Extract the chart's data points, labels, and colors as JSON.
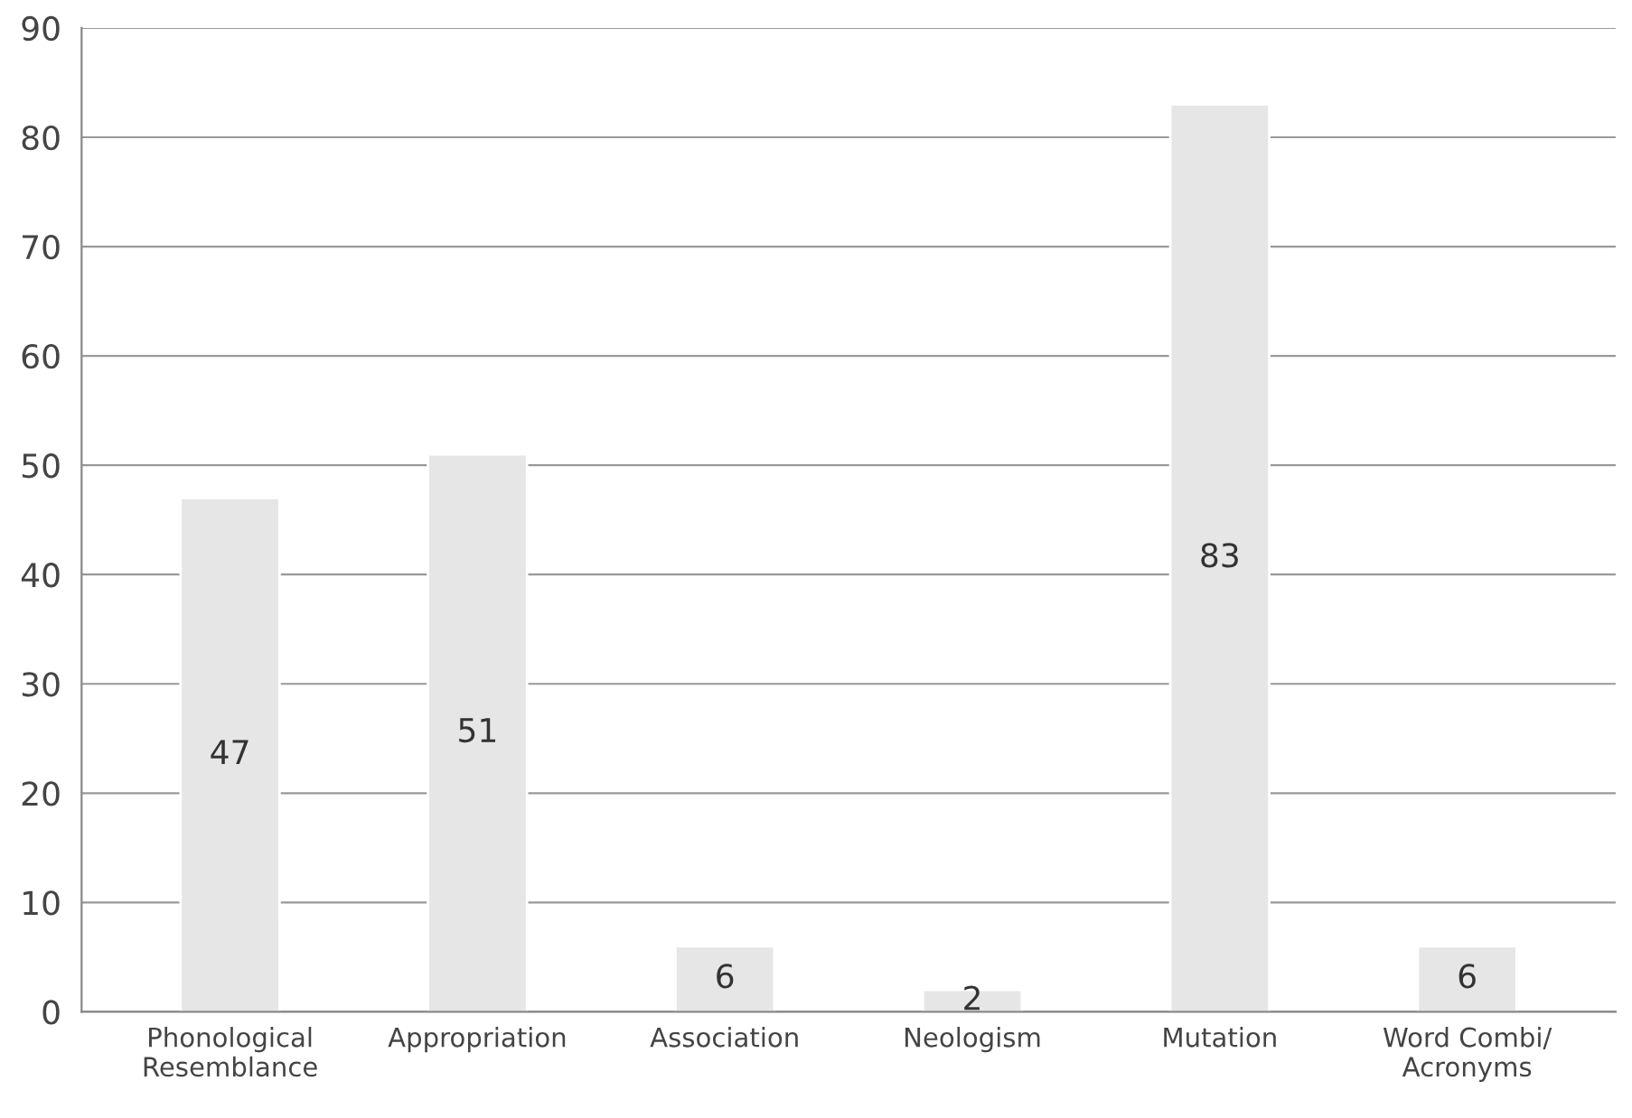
{
  "chart_data": {
    "type": "bar",
    "categories": [
      "Phonological\nResemblance",
      "Appropriation",
      "Association",
      "Neologism",
      "Mutation",
      "Word Combi/\nAcronyms"
    ],
    "values": [
      47,
      51,
      6,
      2,
      83,
      6
    ],
    "color": "#e6e6e6",
    "data_labels": true,
    "ylim": [
      0,
      90
    ],
    "yticks": [
      0,
      10,
      20,
      30,
      40,
      50,
      60,
      70,
      80,
      90
    ],
    "grid": "y"
  }
}
